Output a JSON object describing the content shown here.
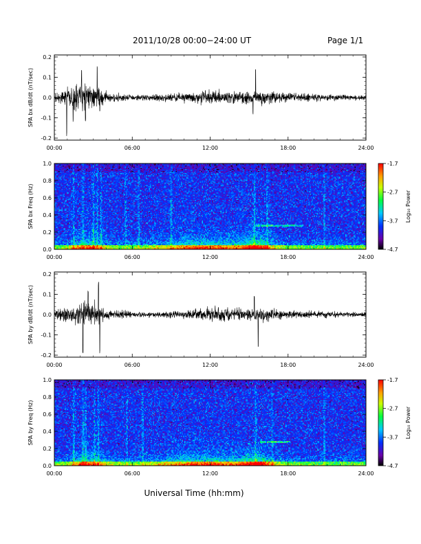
{
  "header": {
    "title": "2011/10/28  00:00−24:00 UT",
    "page": "Page 1/1"
  },
  "xlabel": "Universal Time (hh:mm)",
  "colorbar": {
    "label": "Log₁₀ Power",
    "ticks": [
      "-1.7",
      "-2.7",
      "-3.7",
      "-4.7"
    ],
    "range": [
      -4.7,
      -1.7
    ],
    "scale": "rainbow"
  },
  "chart_data": [
    {
      "type": "line",
      "ylabel": "SPA bx dB/dt (nT/sec)",
      "x_ticks": [
        "00:00",
        "06:00",
        "12:00",
        "18:00",
        "24:00"
      ],
      "xlim": [
        0,
        24
      ],
      "y_ticks": [
        "0.2",
        "0.1",
        "0.0",
        "-0.1",
        "-0.2"
      ],
      "ylim": [
        -0.21,
        0.21
      ],
      "envelope": {
        "hours": [
          0,
          0.5,
          1,
          1.5,
          2,
          2.5,
          3,
          3.5,
          4,
          5,
          6,
          7,
          8,
          9,
          10,
          11,
          12,
          13,
          14,
          15,
          16,
          17,
          18,
          19,
          20,
          21,
          22,
          23,
          24
        ],
        "amplitude": [
          0.025,
          0.04,
          0.07,
          0.09,
          0.1,
          0.09,
          0.07,
          0.06,
          0.04,
          0.03,
          0.02,
          0.02,
          0.025,
          0.03,
          0.035,
          0.045,
          0.05,
          0.05,
          0.045,
          0.045,
          0.05,
          0.045,
          0.035,
          0.03,
          0.028,
          0.025,
          0.02,
          0.018,
          0.018
        ]
      },
      "spikes": [
        {
          "hour": 0.95,
          "value": -0.2
        },
        {
          "hour": 1.45,
          "value": -0.13
        },
        {
          "hour": 2.1,
          "value": 0.15
        },
        {
          "hour": 2.4,
          "value": -0.12
        },
        {
          "hour": 3.3,
          "value": 0.16
        },
        {
          "hour": 3.5,
          "value": -0.07
        },
        {
          "hour": 15.5,
          "value": 0.14
        },
        {
          "hour": 15.3,
          "value": -0.09
        }
      ]
    },
    {
      "type": "heatmap",
      "ylabel": "SPA bx Freq (Hz)",
      "x_ticks": [
        "00:00",
        "06:00",
        "12:00",
        "18:00",
        "24:00"
      ],
      "xlim": [
        0,
        24
      ],
      "y_ticks": [
        "1.0",
        "0.8",
        "0.6",
        "0.4",
        "0.2",
        "0.0"
      ],
      "ylim": [
        0,
        1
      ],
      "value_range": [
        -4.7,
        -1.7
      ],
      "features": {
        "background": -3.95,
        "low_freq_band_hz": [
          0,
          0.05
        ],
        "broadband_bursts_hours": [
          1.5,
          2.2,
          3.0,
          3.3,
          3.6,
          5.5,
          6.5,
          9.0,
          15.4,
          16.4,
          20.8
        ],
        "tone_freq_hz": 0.28,
        "tone_hours": [
          15.5,
          19.2
        ]
      }
    },
    {
      "type": "line",
      "ylabel": "SPA by dB/dt (nT/sec)",
      "x_ticks": [
        "00:00",
        "06:00",
        "12:00",
        "18:00",
        "24:00"
      ],
      "xlim": [
        0,
        24
      ],
      "y_ticks": [
        "0.2",
        "0.1",
        "0.0",
        "-0.1",
        "-0.2"
      ],
      "ylim": [
        -0.21,
        0.21
      ],
      "envelope": {
        "hours": [
          0,
          0.5,
          1,
          1.5,
          2,
          2.5,
          3,
          3.5,
          4,
          5,
          6,
          7,
          8,
          9,
          10,
          11,
          12,
          13,
          14,
          15,
          16,
          17,
          18,
          19,
          20,
          21,
          22,
          23,
          24
        ],
        "amplitude": [
          0.025,
          0.04,
          0.06,
          0.08,
          0.09,
          0.09,
          0.08,
          0.06,
          0.04,
          0.03,
          0.02,
          0.02,
          0.022,
          0.028,
          0.032,
          0.04,
          0.048,
          0.05,
          0.045,
          0.045,
          0.05,
          0.04,
          0.03,
          0.028,
          0.025,
          0.022,
          0.02,
          0.018,
          0.018
        ]
      },
      "spikes": [
        {
          "hour": 2.2,
          "value": -0.2
        },
        {
          "hour": 2.6,
          "value": 0.12
        },
        {
          "hour": 3.4,
          "value": 0.17
        },
        {
          "hour": 3.5,
          "value": -0.2
        },
        {
          "hour": 15.4,
          "value": 0.1
        },
        {
          "hour": 15.7,
          "value": -0.17
        }
      ]
    },
    {
      "type": "heatmap",
      "ylabel": "SPA by Freq (Hz)",
      "x_ticks": [
        "00:00",
        "06:00",
        "12:00",
        "18:00",
        "24:00"
      ],
      "xlim": [
        0,
        24
      ],
      "y_ticks": [
        "1.0",
        "0.8",
        "0.6",
        "0.4",
        "0.2",
        "0.0"
      ],
      "ylim": [
        0,
        1
      ],
      "value_range": [
        -4.7,
        -1.7
      ],
      "features": {
        "background": -3.95,
        "low_freq_band_hz": [
          0,
          0.05
        ],
        "broadband_bursts_hours": [
          1.5,
          2.2,
          2.4,
          3.1,
          3.4,
          5.6,
          6.8,
          15.5,
          16.8,
          20.8
        ],
        "tone_freq_hz": 0.28,
        "tone_hours": [
          15.8,
          18.2
        ]
      }
    }
  ]
}
